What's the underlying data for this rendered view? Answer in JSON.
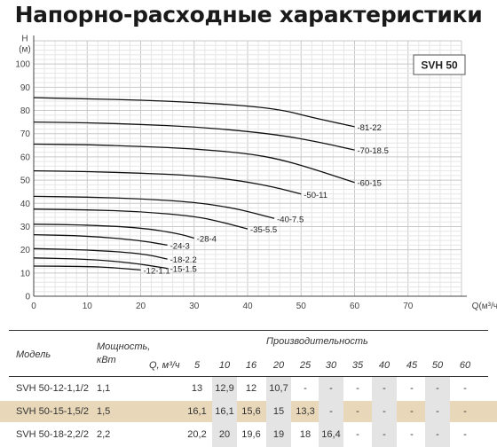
{
  "title": "Напорно-расходные характеристики",
  "chart_data": {
    "type": "line",
    "model_badge": "SVH 50",
    "ylabel": "H",
    "yunit": "(м)",
    "xlabel": "Q(м³/ч)",
    "xlim": [
      0,
      80
    ],
    "ylim": [
      0,
      110
    ],
    "x_ticks": [
      0,
      10,
      20,
      30,
      40,
      50,
      60,
      70
    ],
    "y_ticks": [
      0,
      10,
      20,
      30,
      40,
      50,
      60,
      70,
      80,
      90,
      100
    ],
    "grid": true,
    "series": [
      {
        "name": "-81-22",
        "points": [
          [
            0,
            85.5
          ],
          [
            10,
            85
          ],
          [
            20,
            84.5
          ],
          [
            30,
            83.5
          ],
          [
            40,
            82
          ],
          [
            47,
            80
          ],
          [
            52,
            77
          ],
          [
            60,
            73
          ]
        ],
        "label_at": [
          60,
          73
        ]
      },
      {
        "name": "-70-18.5",
        "points": [
          [
            0,
            75
          ],
          [
            10,
            74.7
          ],
          [
            20,
            74
          ],
          [
            30,
            73
          ],
          [
            40,
            71
          ],
          [
            47,
            69
          ],
          [
            52,
            67
          ],
          [
            60,
            63
          ]
        ],
        "label_at": [
          60,
          63
        ]
      },
      {
        "name": "-60-15",
        "points": [
          [
            0,
            65.5
          ],
          [
            10,
            65.3
          ],
          [
            20,
            64.5
          ],
          [
            30,
            63.5
          ],
          [
            40,
            61.5
          ],
          [
            46,
            59
          ],
          [
            52,
            55
          ],
          [
            60,
            49
          ]
        ],
        "label_at": [
          60,
          49
        ]
      },
      {
        "name": "-50-11",
        "points": [
          [
            0,
            54
          ],
          [
            10,
            53.7
          ],
          [
            20,
            53
          ],
          [
            30,
            52
          ],
          [
            38,
            50
          ],
          [
            45,
            47
          ],
          [
            50,
            44
          ]
        ],
        "label_at": [
          50,
          44
        ]
      },
      {
        "name": "-40-7.5",
        "points": [
          [
            0,
            43
          ],
          [
            10,
            42.7
          ],
          [
            20,
            42
          ],
          [
            30,
            40.5
          ],
          [
            36,
            38.5
          ],
          [
            40,
            36.5
          ],
          [
            45,
            33.5
          ]
        ],
        "label_at": [
          45,
          33.5
        ]
      },
      {
        "name": "-35-5.5",
        "points": [
          [
            0,
            37.5
          ],
          [
            10,
            37.2
          ],
          [
            20,
            36.5
          ],
          [
            30,
            34.5
          ],
          [
            35,
            32
          ],
          [
            40,
            29
          ]
        ],
        "label_at": [
          40,
          29
        ]
      },
      {
        "name": "-28-4",
        "points": [
          [
            0,
            31
          ],
          [
            10,
            30.7
          ],
          [
            20,
            29.5
          ],
          [
            27,
            27
          ],
          [
            30,
            25
          ]
        ],
        "label_at": [
          30,
          25
        ]
      },
      {
        "name": "-24-3",
        "points": [
          [
            0,
            26.5
          ],
          [
            10,
            26
          ],
          [
            20,
            24
          ],
          [
            25,
            22
          ]
        ],
        "label_at": [
          25,
          22
        ]
      },
      {
        "name": "-18-2.2",
        "points": [
          [
            0,
            20.5
          ],
          [
            10,
            20
          ],
          [
            20,
            18.5
          ],
          [
            25,
            16
          ]
        ],
        "label_at": [
          25,
          16
        ]
      },
      {
        "name": "-15-1.5",
        "points": [
          [
            0,
            16.5
          ],
          [
            10,
            16
          ],
          [
            18,
            14.5
          ],
          [
            25,
            12
          ]
        ],
        "label_at": [
          25,
          12
        ]
      },
      {
        "name": "-12-1.1",
        "points": [
          [
            0,
            13
          ],
          [
            10,
            12.8
          ],
          [
            15,
            12.3
          ],
          [
            20,
            11.3
          ]
        ],
        "label_at": [
          20,
          11.3
        ]
      }
    ]
  },
  "table": {
    "col_model": "Модель",
    "col_power": "Мощность, кВт",
    "col_perf": "Производительность",
    "q_label": "Q, м³/ч",
    "q_values": [
      "5",
      "10",
      "16",
      "20",
      "25",
      "30",
      "35",
      "40",
      "45",
      "50",
      "60"
    ],
    "rows": [
      {
        "model": "SVH 50-12-1,1/2",
        "power": "1,1",
        "cells": [
          "13",
          "12,9",
          "12",
          "10,7",
          "-",
          "-",
          "-",
          "-",
          "-",
          "-",
          "-"
        ],
        "highlight": false
      },
      {
        "model": "SVH 50-15-1,5/2",
        "power": "1,5",
        "cells": [
          "16,1",
          "16,1",
          "15,6",
          "15",
          "13,3",
          "-",
          "-",
          "-",
          "-",
          "-",
          "-"
        ],
        "highlight": true
      },
      {
        "model": "SVH 50-18-2,2/2",
        "power": "2,2",
        "cells": [
          "20,2",
          "20",
          "19,6",
          "19",
          "18",
          "16,4",
          "-",
          "-",
          "-",
          "-",
          "-"
        ],
        "highlight": false
      }
    ]
  }
}
